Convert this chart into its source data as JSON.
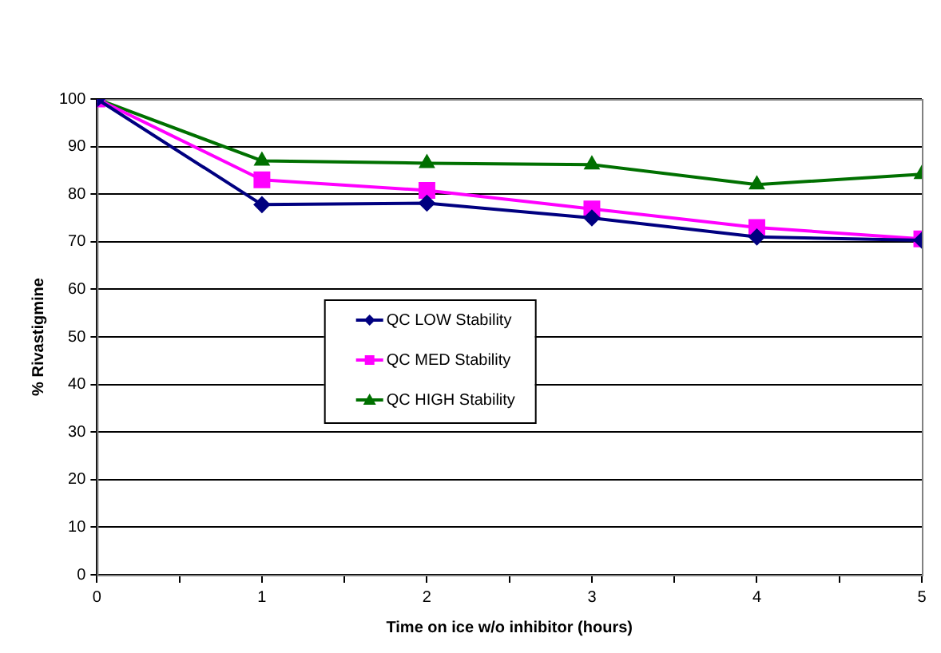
{
  "chart_data": {
    "type": "line",
    "xlabel": "Time on ice w/o inhibitor (hours)",
    "ylabel": "% Rivastigmine",
    "x": [
      0,
      1,
      2,
      3,
      4,
      5
    ],
    "series": [
      {
        "name": "QC LOW Stability",
        "color": "#000080",
        "marker": "diamond",
        "values": [
          100,
          77.8,
          78.1,
          75,
          71,
          70.3
        ]
      },
      {
        "name": "QC MED Stability",
        "color": "#ff00ff",
        "marker": "square",
        "values": [
          100,
          83,
          80.8,
          76.9,
          73,
          70.6
        ]
      },
      {
        "name": "QC HIGH Stability",
        "color": "#007000",
        "marker": "triangle",
        "values": [
          100,
          87,
          86.5,
          86.2,
          82,
          84.2
        ]
      }
    ],
    "xlim": [
      0,
      5
    ],
    "xticks": [
      0,
      {
        "value": 0.5,
        "label": null
      },
      1,
      {
        "value": 1.5,
        "label": null
      },
      2,
      {
        "value": 2.5,
        "label": null
      },
      3,
      {
        "value": 3.5,
        "label": null
      },
      4,
      {
        "value": 4.5,
        "label": null
      },
      5
    ],
    "ylim": [
      0,
      100
    ],
    "yticks": [
      0,
      10,
      20,
      30,
      40,
      50,
      60,
      70,
      80,
      90,
      100
    ],
    "grid": "y",
    "legend": "center",
    "line_style": "solid"
  }
}
